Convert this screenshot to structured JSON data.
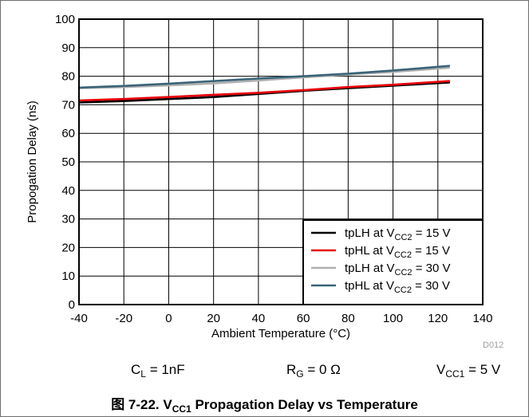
{
  "chart_data": {
    "type": "line",
    "title": "",
    "xlabel": "Ambient Temperature (°C)",
    "ylabel": "Propogation Delay (ns)",
    "xlim": [
      -40,
      140
    ],
    "ylim": [
      0,
      100
    ],
    "x_ticks": [
      -40,
      -20,
      0,
      20,
      40,
      60,
      80,
      100,
      120,
      140
    ],
    "y_ticks": [
      0,
      10,
      20,
      30,
      40,
      50,
      60,
      70,
      80,
      90,
      100
    ],
    "grid": true,
    "legend_position": "bottom-right",
    "x": [
      -40,
      -20,
      0,
      20,
      40,
      60,
      80,
      100,
      125
    ],
    "series": [
      {
        "name_prefix": "tpLH at V",
        "name_sub": "CC2",
        "name_suffix": " = 15 V",
        "color": "#000000",
        "values": [
          70.8,
          71.3,
          72.0,
          72.7,
          73.8,
          74.9,
          75.8,
          76.7,
          77.8
        ]
      },
      {
        "name_prefix": "tpHL at V",
        "name_sub": "CC2",
        "name_suffix": " = 15 V",
        "color": "#e8000b",
        "values": [
          71.5,
          72.0,
          72.7,
          73.5,
          74.2,
          75.1,
          76.2,
          77.0,
          78.3
        ]
      },
      {
        "name_prefix": "tpLH at V",
        "name_sub": "CC2",
        "name_suffix": " = 30 V",
        "color": "#b0b0b0",
        "values": [
          75.8,
          76.2,
          76.8,
          77.5,
          78.5,
          79.6,
          80.6,
          81.5,
          83.0
        ]
      },
      {
        "name_prefix": "tpHL at V",
        "name_sub": "CC2",
        "name_suffix": " = 30 V",
        "color": "#3a6478",
        "values": [
          76.0,
          76.6,
          77.4,
          78.3,
          79.2,
          80.0,
          80.9,
          82.0,
          83.6
        ]
      }
    ]
  },
  "code": "D012",
  "conditions": [
    {
      "main": "C",
      "sub": "L",
      "rest": " = 1nF"
    },
    {
      "main": "R",
      "sub": "G",
      "rest": " = 0  Ω"
    },
    {
      "main": "V",
      "sub": "CC1",
      "rest": " = 5 V"
    }
  ],
  "caption": {
    "pre": "图 7-22. V",
    "sub": "CC1",
    "post": " Propagation Delay vs Temperature"
  }
}
